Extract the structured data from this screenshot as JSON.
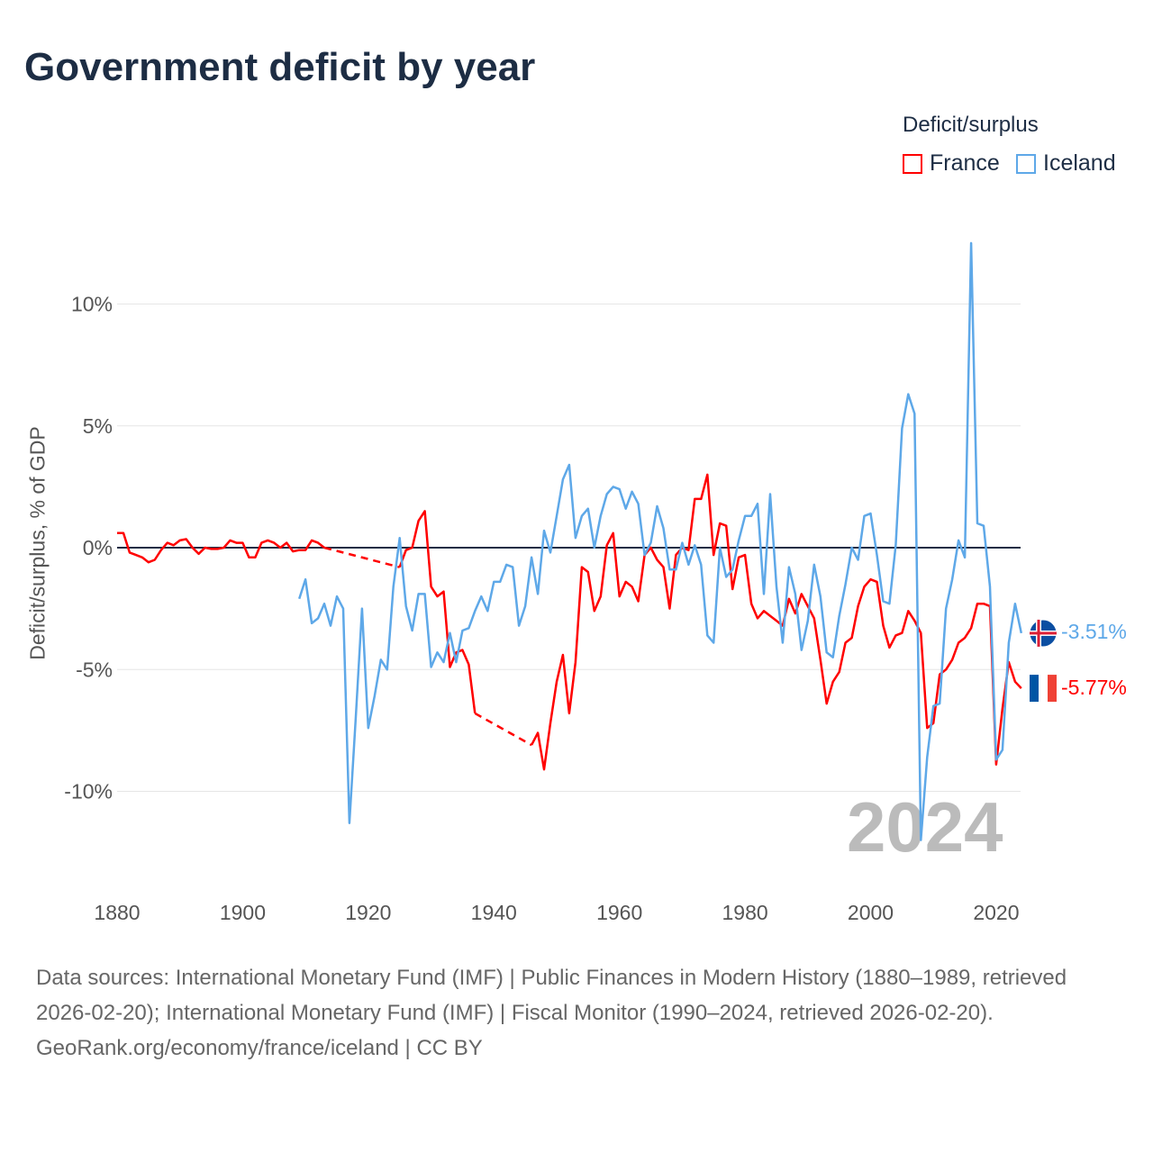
{
  "title": "Government deficit by year",
  "legend": {
    "title": "Deficit/surplus",
    "items": [
      {
        "label": "France",
        "color": "#ff0000"
      },
      {
        "label": "Iceland",
        "color": "#5ea8e8"
      }
    ]
  },
  "year_overlay": "2024",
  "end_labels": {
    "iceland": "-3.51%",
    "france": "-5.77%"
  },
  "footer": {
    "sources": "Data sources: International Monetary Fund (IMF) | Public Finances in Modern History (1880–1989, retrieved 2026-02-20); International Monetary Fund (IMF) | Fiscal Monitor (1990–2024, retrieved 2026-02-20).",
    "credit": "GeoRank.org/economy/france/iceland | CC BY"
  },
  "chart_data": {
    "type": "line",
    "title": "Government deficit by year",
    "xlabel": "",
    "ylabel": "Deficit/surplus, % of GDP",
    "xlim": [
      1880,
      2024
    ],
    "ylim": [
      -12.5,
      13
    ],
    "xticks": [
      "1880",
      "1900",
      "1920",
      "1940",
      "1960",
      "1980",
      "2000",
      "2020"
    ],
    "yticks": [
      {
        "v": 10,
        "label": "10%"
      },
      {
        "v": 5,
        "label": "5%"
      },
      {
        "v": 0,
        "label": "0%"
      },
      {
        "v": -5,
        "label": "-5%"
      },
      {
        "v": -10,
        "label": "-10%"
      }
    ],
    "legend_position": "top-right",
    "series": [
      {
        "name": "France",
        "color": "#ff0000",
        "start": 1880,
        "values": [
          0.6,
          0.6,
          -0.2,
          -0.3,
          -0.4,
          -0.6,
          -0.5,
          -0.1,
          0.2,
          0.1,
          0.3,
          0.35,
          0.0,
          -0.25,
          0.0,
          -0.05,
          -0.05,
          0.0,
          0.3,
          0.2,
          0.2,
          -0.4,
          -0.4,
          0.2,
          0.3,
          0.2,
          0.0,
          0.2,
          -0.15,
          -0.1,
          -0.1,
          0.3,
          0.2,
          0.0,
          null,
          null,
          null,
          null,
          null,
          null,
          null,
          null,
          null,
          null,
          null,
          -0.8,
          -0.1,
          0.0,
          1.1,
          1.5,
          -1.6,
          -2.0,
          -1.8,
          -4.9,
          -4.3,
          -4.2,
          -4.8,
          -6.8,
          null,
          null,
          null,
          null,
          null,
          null,
          null,
          null,
          -8.1,
          -7.6,
          -9.1,
          -7.2,
          -5.5,
          -4.4,
          -6.8,
          -4.7,
          -0.8,
          -1.0,
          -2.6,
          -2.0,
          0.1,
          0.6,
          -2.0,
          -1.4,
          -1.6,
          -2.2,
          -0.3,
          0.0,
          -0.5,
          -0.8,
          -2.5,
          -0.3,
          0.0,
          -0.1,
          2.0,
          2.0,
          3.0,
          -0.3,
          1.0,
          0.9,
          -1.7,
          -0.4,
          -0.3,
          -2.3,
          -2.9,
          -2.6,
          -2.8,
          -3.0,
          -3.2,
          -2.1,
          -2.7,
          -1.9,
          -2.4,
          -2.9,
          -4.6,
          -6.4,
          -5.5,
          -5.1,
          -3.9,
          -3.7,
          -2.4,
          -1.6,
          -1.3,
          -1.4,
          -3.2,
          -4.1,
          -3.6,
          -3.5,
          -2.6,
          -3.0,
          -3.5,
          -7.4,
          -7.2,
          -5.2,
          -5.0,
          -4.6,
          -3.9,
          -3.7,
          -3.3,
          -2.3,
          -2.3,
          -2.4,
          -8.9,
          -6.6,
          -4.7,
          -5.5,
          -5.77
        ]
      },
      {
        "name": "Iceland",
        "color": "#5ea8e8",
        "start": 1909,
        "values": [
          -2.1,
          -1.3,
          -3.1,
          -2.9,
          -2.3,
          -3.2,
          -2.0,
          -2.5,
          -11.3,
          -7.0,
          -2.5,
          -7.4,
          -6.1,
          -4.6,
          -5.0,
          -1.6,
          0.4,
          -2.4,
          -3.4,
          -1.9,
          -1.9,
          -4.9,
          -4.3,
          -4.7,
          -3.5,
          -4.7,
          -3.4,
          -3.3,
          -2.6,
          -2.0,
          -2.6,
          -1.4,
          -1.4,
          -0.7,
          -0.8,
          -3.2,
          -2.4,
          -0.4,
          -1.9,
          0.7,
          -0.2,
          1.3,
          2.8,
          3.4,
          0.4,
          1.3,
          1.6,
          0.0,
          1.3,
          2.2,
          2.5,
          2.4,
          1.6,
          2.3,
          1.8,
          -0.3,
          0.2,
          1.7,
          0.8,
          -0.9,
          -0.9,
          0.2,
          -0.7,
          0.1,
          -0.7,
          -3.6,
          -3.9,
          0.0,
          -1.2,
          -0.9,
          0.3,
          1.3,
          1.3,
          1.8,
          -1.9,
          2.2,
          -1.6,
          -3.9,
          -0.8,
          -1.9,
          -4.2,
          -3.0,
          -0.7,
          -2.0,
          -4.3,
          -4.5,
          -2.8,
          -1.5,
          0.0,
          -0.5,
          1.3,
          1.4,
          -0.3,
          -2.2,
          -2.3,
          0.1,
          4.9,
          6.3,
          5.5,
          -12.0,
          -8.6,
          -6.5,
          -6.4,
          -2.5,
          -1.3,
          0.3,
          -0.4,
          12.5,
          1.0,
          0.9,
          -1.6,
          -8.7,
          -8.3,
          -3.9,
          -2.3,
          -3.51
        ]
      }
    ]
  }
}
